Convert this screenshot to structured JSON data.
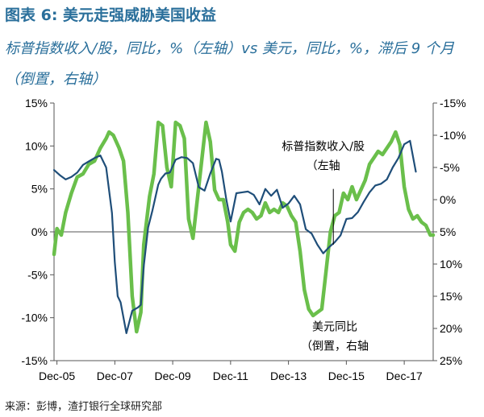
{
  "header": {
    "title": "图表 6: 美元走强威胁美国收益",
    "subtitle": "标普指数收入/股，同比，%（左轴）vs 美元，同比，%，滞后 9 个月（倒置，右轴）"
  },
  "footer": {
    "source": "来源：彭博，渣打银行全球研究部"
  },
  "chart_data": {
    "type": "line",
    "title": "图表 6: 美元走强威胁美国收益",
    "x_tick_labels": [
      "Dec-05",
      "Dec-07",
      "Dec-09",
      "Dec-11",
      "Dec-13",
      "Dec-15",
      "Dec-17"
    ],
    "x_ticks": [
      2006.0,
      2008.0,
      2010.0,
      2012.0,
      2014.0,
      2016.0,
      2018.0
    ],
    "xlim": [
      2005.9,
      2019.0
    ],
    "ylim_left": [
      -15,
      15
    ],
    "left_tick_labels": [
      "15%",
      "10%",
      "5%",
      "0%",
      "-5%",
      "-10%",
      "-15%"
    ],
    "left_tick_values": [
      15,
      10,
      5,
      0,
      -5,
      -10,
      -15
    ],
    "ylim_right": [
      -15,
      25
    ],
    "right_inverted": true,
    "right_tick_labels": [
      "-15%",
      "-10%",
      "-5%",
      "0%",
      "5%",
      "10%",
      "15%",
      "20%",
      "25%"
    ],
    "right_tick_values": [
      -15,
      -10,
      -5,
      0,
      5,
      10,
      15,
      20,
      25
    ],
    "series": [
      {
        "name": "标普指数收入/股",
        "axis": "left",
        "color": "#1f4e79",
        "x": [
          2005.9,
          2006.1,
          2006.3,
          2006.5,
          2006.7,
          2006.9,
          2007.1,
          2007.3,
          2007.5,
          2007.7,
          2007.9,
          2008.0,
          2008.1,
          2008.2,
          2008.4,
          2008.6,
          2008.8,
          2008.9,
          2009.0,
          2009.15,
          2009.3,
          2009.5,
          2009.6,
          2009.75,
          2009.9,
          2010.1,
          2010.3,
          2010.5,
          2010.7,
          2010.9,
          2011.1,
          2011.3,
          2011.5,
          2011.6,
          2011.7,
          2011.85,
          2012.0,
          2012.2,
          2012.4,
          2012.6,
          2012.8,
          2013.0,
          2013.2,
          2013.4,
          2013.6,
          2013.8,
          2014.0,
          2014.2,
          2014.4,
          2014.6,
          2014.8,
          2015.0,
          2015.2,
          2015.4,
          2015.6,
          2015.8,
          2016.0,
          2016.2,
          2016.4,
          2016.6,
          2016.8,
          2017.0,
          2017.2,
          2017.4,
          2017.6,
          2017.8,
          2018.0,
          2018.2,
          2018.4
        ],
        "y": [
          7.2,
          6.6,
          6.1,
          6.4,
          6.9,
          7.8,
          8.2,
          8.6,
          8.9,
          7.5,
          2.2,
          -3.5,
          -7.5,
          -8.2,
          -11.8,
          -9.2,
          -8.8,
          -8.5,
          -4.0,
          0.5,
          2.5,
          5.5,
          6.2,
          6.8,
          6.9,
          8.4,
          8.7,
          8.6,
          8.0,
          5.2,
          4.8,
          6.8,
          8.5,
          8.4,
          7.0,
          3.8,
          1.2,
          4.5,
          4.6,
          4.7,
          4.3,
          3.2,
          5.0,
          4.2,
          4.9,
          2.8,
          3.3,
          4.2,
          3.2,
          0.3,
          -0.2,
          -1.5,
          -2.5,
          -1.8,
          -1.2,
          -0.4,
          1.5,
          1.6,
          2.3,
          3.5,
          4.6,
          5.4,
          5.6,
          6.1,
          7.5,
          8.6,
          10.2,
          10.6,
          7.0
        ]
      },
      {
        "name": "美元同比（倒置）",
        "axis": "right",
        "color": "#6abf4b",
        "x": [
          2005.9,
          2006.0,
          2006.15,
          2006.3,
          2006.5,
          2006.7,
          2006.9,
          2007.1,
          2007.3,
          2007.5,
          2007.7,
          2007.8,
          2007.95,
          2008.05,
          2008.15,
          2008.3,
          2008.45,
          2008.6,
          2008.75,
          2008.9,
          2009.0,
          2009.2,
          2009.35,
          2009.5,
          2009.65,
          2009.8,
          2009.95,
          2010.1,
          2010.25,
          2010.4,
          2010.55,
          2010.7,
          2010.85,
          2011.0,
          2011.15,
          2011.3,
          2011.45,
          2011.6,
          2011.75,
          2011.9,
          2012.0,
          2012.15,
          2012.3,
          2012.45,
          2012.6,
          2012.75,
          2012.9,
          2013.05,
          2013.2,
          2013.35,
          2013.5,
          2013.65,
          2013.8,
          2013.95,
          2014.1,
          2014.25,
          2014.4,
          2014.55,
          2014.7,
          2014.85,
          2015.0,
          2015.15,
          2015.3,
          2015.45,
          2015.6,
          2015.75,
          2015.9,
          2016.05,
          2016.2,
          2016.35,
          2016.5,
          2016.65,
          2016.8,
          2016.95,
          2017.1,
          2017.25,
          2017.4,
          2017.55,
          2017.7,
          2017.85,
          2018.0,
          2018.15,
          2018.3,
          2018.45,
          2018.6,
          2018.75,
          2018.9,
          2019.0
        ],
        "y": [
          8.5,
          4.5,
          5.5,
          2.0,
          -1.0,
          -3.5,
          -4.0,
          -5.5,
          -6.0,
          -8.0,
          -9.5,
          -10.5,
          -10.0,
          -9.0,
          -8.0,
          -6.0,
          2.0,
          15.0,
          20.5,
          17.5,
          7.0,
          -0.5,
          -4.0,
          -12.0,
          -11.5,
          -5.0,
          -2.0,
          -12.0,
          -11.5,
          -9.5,
          3.0,
          6.0,
          0.0,
          -6.0,
          -12.0,
          -9.0,
          -1.5,
          0.0,
          0.0,
          3.5,
          7.0,
          8.0,
          3.5,
          2.0,
          1.5,
          2.0,
          3.0,
          2.5,
          0.5,
          2.0,
          1.5,
          2.0,
          0.5,
          1.0,
          2.5,
          3.5,
          8.0,
          14.0,
          17.0,
          18.0,
          17.5,
          17.0,
          11.0,
          5.0,
          2.5,
          2.0,
          -1.0,
          0.0,
          -2.0,
          0.0,
          -1.5,
          -3.0,
          -5.5,
          -6.5,
          -7.5,
          -7.0,
          -8.0,
          -9.0,
          -10.5,
          -8.5,
          -2.0,
          1.5,
          3.0,
          2.5,
          3.5,
          4.0,
          5.5,
          5.5
        ]
      }
    ],
    "annotations": [
      {
        "text_lines": [
          "标普指数收入/股",
          "（左轴"
        ],
        "x": 2015.2,
        "y_left": 9.5,
        "leader_from_left": 5.0,
        "leader_to_left": -1.5
      },
      {
        "text_lines": [
          "美元同比",
          "（倒置，右轴"
        ],
        "x": 2015.6,
        "y_left": -11.5
      }
    ]
  }
}
